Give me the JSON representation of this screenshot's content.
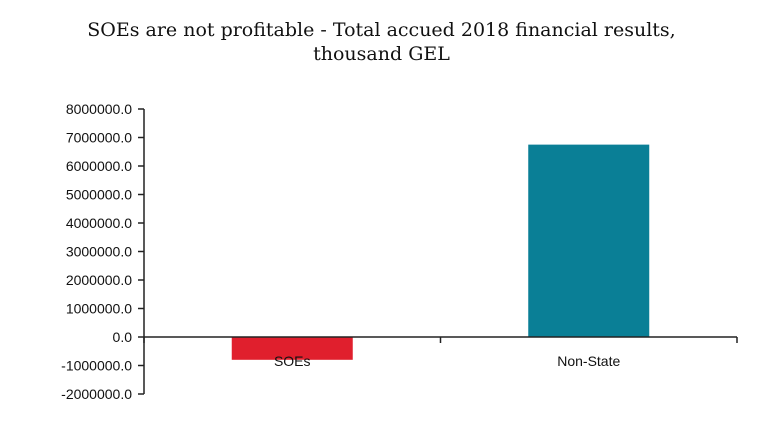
{
  "chart_data": {
    "type": "bar",
    "title": "SOEs are not profitable - Total accued 2018 financial results,\nthousand GEL",
    "xlabel": "",
    "ylabel": "",
    "categories": [
      "SOEs",
      "Non-State"
    ],
    "values": [
      -800000,
      6750000
    ],
    "colors": [
      "#e01f2d",
      "#0a7f96"
    ],
    "ylim": [
      -2000000,
      8000000
    ],
    "yticks": [
      8000000,
      7000000,
      6000000,
      5000000,
      4000000,
      3000000,
      2000000,
      1000000,
      0,
      -1000000,
      -2000000
    ],
    "ytick_labels": [
      "8000000.0",
      "7000000.0",
      "6000000.0",
      "5000000.0",
      "4000000.0",
      "3000000.0",
      "2000000.0",
      "1000000.0",
      "0.0",
      "-1000000.0",
      "-2000000.0"
    ],
    "grid": false,
    "legend": "none"
  }
}
